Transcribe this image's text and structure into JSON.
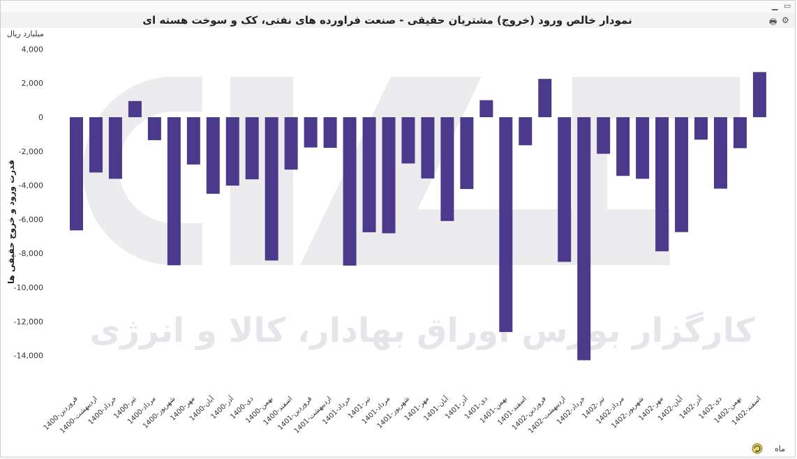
{
  "window": {
    "title": "نمودار خالص ورود (خروج) مشتریان حقیقی - صنعت فراورده های نفتی، کک و سوخت هسته ای",
    "minimize_icon": "minimize-icon",
    "restore_icon": "restore-icon",
    "print_icon": "print-icon",
    "tool_icon": "tool-icon"
  },
  "watermark": {
    "text": "کارگزار بورس اوراق بهادار، کالا و انرژی"
  },
  "colors": {
    "bar": "#4b3a8c",
    "watermark": "#e8eaed",
    "axis_text": "#333333"
  },
  "chart_data": {
    "type": "bar",
    "title": "نمودار خالص ورود (خروج) مشتریان حقیقی - صنعت فراورده های نفتی، کک و سوخت هسته ای",
    "unit_label": "میلیارد ریال",
    "ylabel": "قدرت ورود و خروج حقیقی ها",
    "xlabel": "ماه",
    "ylim": [
      -14000,
      4000
    ],
    "yticks": [
      4000,
      2000,
      0,
      -2000,
      -4000,
      -6000,
      -8000,
      -10000,
      -12000,
      -14000
    ],
    "ytick_labels": [
      "4,000",
      "2,000",
      "0",
      "-2,000",
      "-4,000",
      "-6,000",
      "-8,000",
      "-10,000",
      "-12,000",
      "-14,000"
    ],
    "grid": false,
    "categories": [
      "1400-فروردین",
      "1400-اردیبهشت",
      "1400-خرداد",
      "1400-تیر",
      "1400-مرداد",
      "1400-شهریور",
      "1400-مهر",
      "1400-آبان",
      "1400-آذر",
      "1400-دی",
      "1400-بهمن",
      "1400-اسفند",
      "1401-فروردین",
      "1401-اردیبهشت",
      "1401-خرداد",
      "1401-تیر",
      "1401-مرداد",
      "1401-شهریور",
      "1401-مهر",
      "1401-آبان",
      "1401-آذر",
      "1401-دی",
      "1401-بهمن",
      "1401-اسفند",
      "1402-فروردین",
      "1402-اردیبهشت",
      "1402-خرداد",
      "1402-تیر",
      "1402-مرداد",
      "1402-شهریور",
      "1402-مهر",
      "1402-آبان",
      "1402-آذر",
      "1402-دی",
      "1402-بهمن",
      "1402-اسفند"
    ],
    "values": [
      -6650,
      -3250,
      -3620,
      950,
      -1350,
      -8700,
      -2780,
      -4500,
      -4020,
      -3650,
      -8420,
      -3080,
      -1780,
      -1800,
      -8720,
      -6760,
      -6820,
      -2720,
      -3600,
      -6100,
      -4220,
      1000,
      -12620,
      -1650,
      2250,
      -8500,
      -14280,
      -2150,
      -3450,
      -3620,
      -7880,
      -6750,
      -1320,
      -4200,
      -1820,
      2650
    ]
  }
}
